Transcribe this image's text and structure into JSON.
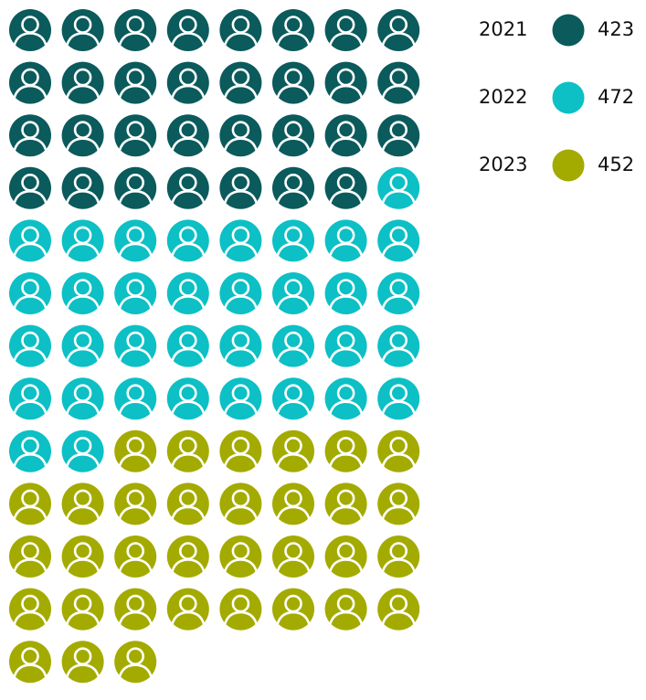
{
  "chart_data": {
    "type": "pictogram",
    "series": [
      {
        "name": "2021",
        "color": "#0b5a5c",
        "values": [
          423
        ]
      },
      {
        "name": "2022",
        "color": "#0cc0c5",
        "values": [
          472
        ]
      },
      {
        "name": "2023",
        "color": "#a3ab00",
        "values": [
          452
        ]
      }
    ]
  }
}
